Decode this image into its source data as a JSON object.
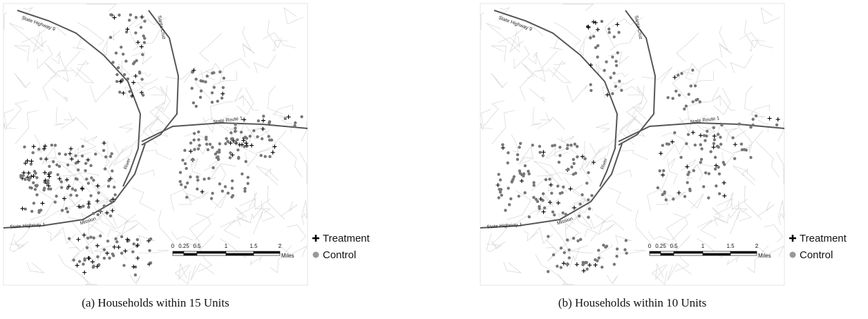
{
  "panels": [
    {
      "road_labels": [
        "State Highway 9",
        "Santa Cruz",
        "River",
        "State Route 1",
        "State Highway 1",
        "Mission"
      ],
      "legend": [
        "Treatment",
        "Control"
      ],
      "scale": [
        "0",
        "0.25",
        "0.5",
        "1",
        "1.5",
        "2"
      ],
      "scale_unit": "Miles",
      "caption": "(a)  Households within 15 Units"
    },
    {
      "road_labels": [
        "State Highway 9",
        "Santa Cruz",
        "River",
        "State Route 1",
        "State Highway 1",
        "Mission"
      ],
      "legend": [
        "Treatment",
        "Control"
      ],
      "scale": [
        "0",
        "0.25",
        "0.5",
        "1",
        "1.5",
        "2"
      ],
      "scale_unit": "Miles",
      "caption": "(b)  Households within 10 Units"
    }
  ]
}
